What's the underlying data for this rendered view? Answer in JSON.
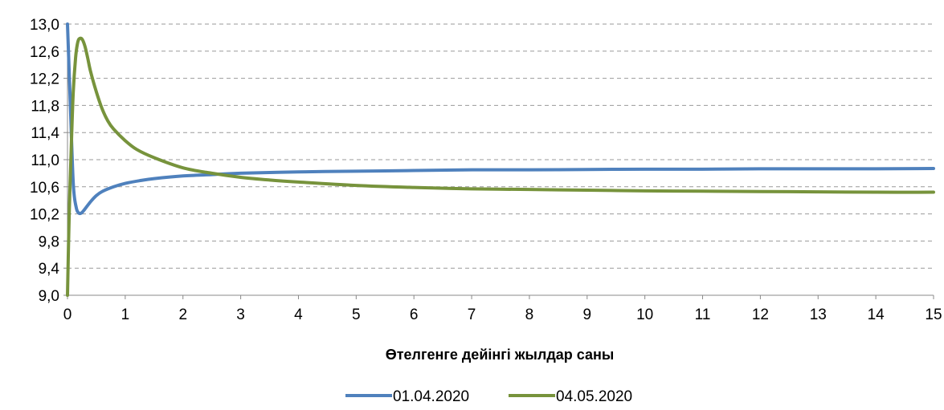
{
  "chart_data": {
    "type": "line",
    "title": "",
    "xlabel": "Өтелгенге дейінгі жылдар саны",
    "ylabel": "",
    "xlim": [
      0,
      15
    ],
    "ylim": [
      9.0,
      13.0
    ],
    "x_ticks": [
      "0",
      "1",
      "2",
      "3",
      "4",
      "5",
      "6",
      "7",
      "8",
      "9",
      "10",
      "11",
      "12",
      "13",
      "14",
      "15"
    ],
    "y_ticks": [
      "9,0",
      "9,4",
      "9,8",
      "10,2",
      "10,6",
      "11,0",
      "11,4",
      "11,8",
      "12,2",
      "12,6",
      "13,0"
    ],
    "grid": "horizontal dashed",
    "legend_position": "bottom",
    "series": [
      {
        "name": "01.04.2020",
        "color": "#4F81BD",
        "x": [
          0.0,
          0.05,
          0.1,
          0.15,
          0.2,
          0.25,
          0.3,
          0.4,
          0.5,
          0.6,
          0.8,
          1.0,
          1.25,
          1.5,
          2.0,
          2.5,
          3.0,
          4.0,
          5.0,
          6.0,
          7.0,
          8.0,
          9.0,
          10.0,
          11.0,
          12.0,
          13.0,
          14.0,
          15.0
        ],
        "values": [
          13.0,
          11.8,
          10.65,
          10.3,
          10.21,
          10.22,
          10.27,
          10.38,
          10.47,
          10.53,
          10.6,
          10.65,
          10.69,
          10.72,
          10.76,
          10.78,
          10.8,
          10.82,
          10.83,
          10.84,
          10.85,
          10.85,
          10.855,
          10.86,
          10.86,
          10.865,
          10.865,
          10.865,
          10.87
        ]
      },
      {
        "name": "04.05.2020",
        "color": "#77933C",
        "x": [
          0.0,
          0.03,
          0.07,
          0.1,
          0.14,
          0.17,
          0.2,
          0.25,
          0.3,
          0.35,
          0.4,
          0.5,
          0.6,
          0.7,
          0.8,
          1.0,
          1.2,
          1.5,
          2.0,
          2.5,
          3.0,
          3.5,
          4.0,
          5.0,
          6.0,
          7.0,
          8.0,
          9.0,
          10.0,
          11.0,
          12.0,
          13.0,
          14.0,
          15.0
        ],
        "values": [
          9.0,
          10.2,
          11.3,
          12.0,
          12.5,
          12.7,
          12.78,
          12.78,
          12.68,
          12.5,
          12.3,
          12.0,
          11.75,
          11.57,
          11.45,
          11.28,
          11.15,
          11.03,
          10.88,
          10.8,
          10.74,
          10.7,
          10.67,
          10.62,
          10.59,
          10.57,
          10.56,
          10.55,
          10.54,
          10.535,
          10.53,
          10.525,
          10.52,
          10.52
        ]
      }
    ]
  }
}
